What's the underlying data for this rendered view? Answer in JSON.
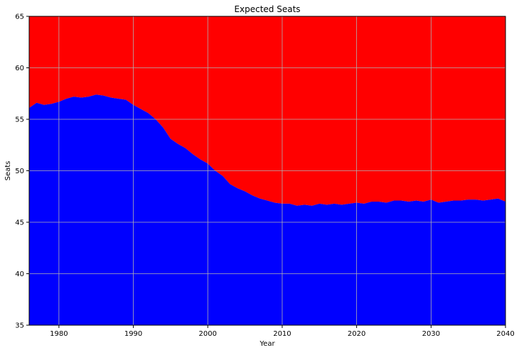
{
  "chart_data": {
    "type": "area",
    "title": "Expected Seats",
    "xlabel": "Year",
    "ylabel": "Seats",
    "xlim": [
      1976,
      2040
    ],
    "ylim": [
      35,
      65
    ],
    "xticks": [
      1980,
      1990,
      2000,
      2010,
      2020,
      2030,
      2040
    ],
    "yticks": [
      35,
      40,
      45,
      50,
      55,
      60,
      65
    ],
    "grid": true,
    "x": [
      1976,
      1977,
      1978,
      1979,
      1980,
      1981,
      1982,
      1983,
      1984,
      1985,
      1986,
      1987,
      1988,
      1989,
      1990,
      1991,
      1992,
      1993,
      1994,
      1995,
      1996,
      1997,
      1998,
      1999,
      2000,
      2001,
      2002,
      2003,
      2004,
      2005,
      2006,
      2007,
      2008,
      2009,
      2010,
      2011,
      2012,
      2013,
      2014,
      2015,
      2016,
      2017,
      2018,
      2019,
      2020,
      2021,
      2022,
      2023,
      2024,
      2025,
      2026,
      2027,
      2028,
      2029,
      2030,
      2031,
      2032,
      2033,
      2034,
      2035,
      2036,
      2037,
      2038,
      2039,
      2040
    ],
    "series": [
      {
        "color": "#0000ff",
        "values": [
          56.1,
          56.6,
          56.4,
          56.5,
          56.7,
          57.0,
          57.2,
          57.1,
          57.2,
          57.4,
          57.3,
          57.1,
          57.0,
          56.9,
          56.4,
          56.0,
          55.6,
          55.0,
          54.2,
          53.1,
          52.6,
          52.2,
          51.6,
          51.1,
          50.7,
          50.0,
          49.5,
          48.7,
          48.3,
          48.0,
          47.6,
          47.3,
          47.1,
          46.9,
          46.8,
          46.8,
          46.6,
          46.7,
          46.6,
          46.8,
          46.7,
          46.8,
          46.7,
          46.8,
          46.9,
          46.8,
          47.0,
          47.0,
          46.9,
          47.1,
          47.1,
          47.0,
          47.1,
          47.0,
          47.2,
          46.9,
          47.0,
          47.1,
          47.1,
          47.2,
          47.2,
          47.1,
          47.2,
          47.3,
          47.0
        ]
      },
      {
        "color": "#ff0000",
        "fill_to": 65
      }
    ],
    "grid_color": "#b0b0b0"
  }
}
